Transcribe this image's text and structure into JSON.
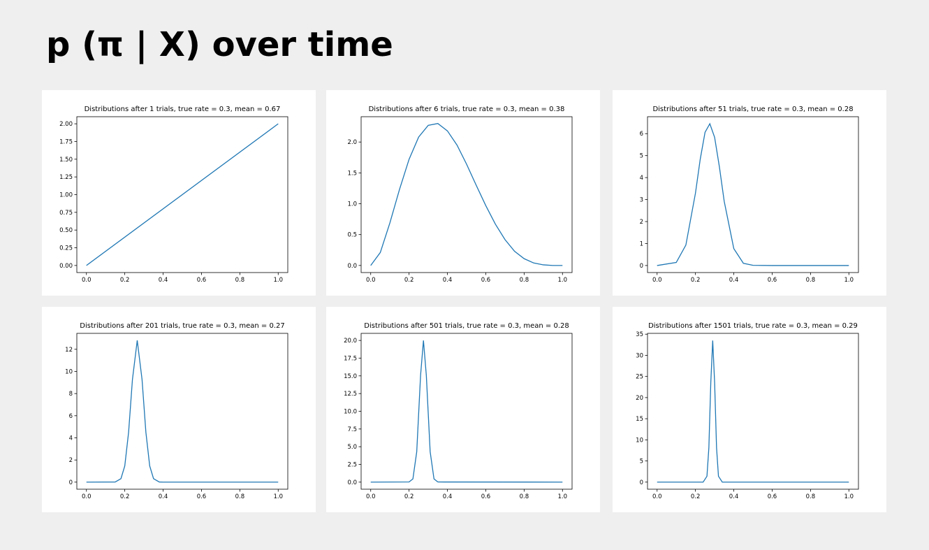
{
  "title": "p (π | X) over time",
  "chart_data": [
    {
      "type": "line",
      "title": "Distributions after 1 trials, true rate = 0.3, mean = 0.67",
      "color": "#1f77b4",
      "x": [
        0,
        1
      ],
      "values": [
        0,
        2
      ],
      "xlim": [
        -0.05,
        1.05
      ],
      "xticks": [
        {
          "value": 0,
          "label": "0.0"
        },
        {
          "value": 0.2,
          "label": "0.2"
        },
        {
          "value": 0.4,
          "label": "0.4"
        },
        {
          "value": 0.6,
          "label": "0.6"
        },
        {
          "value": 0.8,
          "label": "0.8"
        },
        {
          "value": 1,
          "label": "1.0"
        }
      ],
      "ylim": [
        -0.1,
        2.1
      ],
      "yticks": [
        {
          "value": 0,
          "label": "0.00"
        },
        {
          "value": 0.25,
          "label": "0.25"
        },
        {
          "value": 0.5,
          "label": "0.50"
        },
        {
          "value": 0.75,
          "label": "0.75"
        },
        {
          "value": 1,
          "label": "1.00"
        },
        {
          "value": 1.25,
          "label": "1.25"
        },
        {
          "value": 1.5,
          "label": "1.50"
        },
        {
          "value": 1.75,
          "label": "1.75"
        },
        {
          "value": 2,
          "label": "2.00"
        }
      ]
    },
    {
      "type": "line",
      "title": "Distributions after 6 trials, true rate = 0.3, mean = 0.38",
      "color": "#1f77b4",
      "x": [
        0,
        0.05,
        0.1,
        0.15,
        0.2,
        0.25,
        0.3,
        0.35,
        0.4,
        0.45,
        0.5,
        0.55,
        0.6,
        0.65,
        0.7,
        0.75,
        0.8,
        0.85,
        0.9,
        0.95,
        1
      ],
      "values": [
        0,
        0.21,
        0.69,
        1.23,
        1.72,
        2.08,
        2.27,
        2.3,
        2.18,
        1.95,
        1.64,
        1.3,
        0.97,
        0.67,
        0.42,
        0.23,
        0.11,
        0.04,
        0.01,
        0,
        0
      ],
      "xlim": [
        -0.05,
        1.05
      ],
      "xticks": [
        {
          "value": 0,
          "label": "0.0"
        },
        {
          "value": 0.2,
          "label": "0.2"
        },
        {
          "value": 0.4,
          "label": "0.4"
        },
        {
          "value": 0.6,
          "label": "0.6"
        },
        {
          "value": 0.8,
          "label": "0.8"
        },
        {
          "value": 1,
          "label": "1.0"
        }
      ],
      "ylim": [
        -0.115,
        2.41
      ],
      "yticks": [
        {
          "value": 0,
          "label": "0.0"
        },
        {
          "value": 0.5,
          "label": "0.5"
        },
        {
          "value": 1,
          "label": "1.0"
        },
        {
          "value": 1.5,
          "label": "1.5"
        },
        {
          "value": 2,
          "label": "2.0"
        }
      ]
    },
    {
      "type": "line",
      "title": "Distributions after 51 trials, true rate = 0.3, mean = 0.28",
      "color": "#1f77b4",
      "x": [
        0,
        0.1,
        0.15,
        0.2,
        0.225,
        0.25,
        0.275,
        0.3,
        0.325,
        0.35,
        0.4,
        0.45,
        0.5,
        0.6,
        1
      ],
      "values": [
        0,
        0.14,
        0.93,
        3.29,
        4.84,
        6.06,
        6.45,
        5.83,
        4.48,
        2.92,
        0.77,
        0.1,
        0.01,
        0,
        0
      ],
      "xlim": [
        -0.05,
        1.05
      ],
      "xticks": [
        {
          "value": 0,
          "label": "0.0"
        },
        {
          "value": 0.2,
          "label": "0.2"
        },
        {
          "value": 0.4,
          "label": "0.4"
        },
        {
          "value": 0.6,
          "label": "0.6"
        },
        {
          "value": 0.8,
          "label": "0.8"
        },
        {
          "value": 1,
          "label": "1.0"
        }
      ],
      "ylim": [
        -0.32,
        6.77
      ],
      "yticks": [
        0,
        1,
        2,
        3,
        4,
        5,
        6
      ]
    },
    {
      "type": "line",
      "title": "Distributions after 201 trials, true rate = 0.3, mean = 0.27",
      "color": "#1f77b4",
      "x": [
        0,
        0.15,
        0.18,
        0.2,
        0.22,
        0.24,
        0.265,
        0.29,
        0.31,
        0.33,
        0.35,
        0.38,
        0.4,
        1
      ],
      "values": [
        0,
        0.01,
        0.31,
        1.46,
        4.52,
        9.28,
        12.8,
        9.28,
        4.52,
        1.46,
        0.31,
        0.01,
        0,
        0
      ],
      "xlim": [
        -0.05,
        1.05
      ],
      "xticks": [
        {
          "value": 0,
          "label": "0.0"
        },
        {
          "value": 0.2,
          "label": "0.2"
        },
        {
          "value": 0.4,
          "label": "0.4"
        },
        {
          "value": 0.6,
          "label": "0.6"
        },
        {
          "value": 0.8,
          "label": "0.8"
        },
        {
          "value": 1,
          "label": "1.0"
        }
      ],
      "ylim": [
        -0.64,
        13.44
      ],
      "yticks": [
        0,
        2,
        4,
        6,
        8,
        10,
        12
      ]
    },
    {
      "type": "line",
      "title": "Distributions after 501 trials, true rate = 0.3, mean = 0.28",
      "color": "#1f77b4",
      "x": [
        0,
        0.2,
        0.22,
        0.24,
        0.26,
        0.275,
        0.29,
        0.31,
        0.33,
        0.35,
        1
      ],
      "values": [
        0,
        0.02,
        0.45,
        4.29,
        15.07,
        20,
        15.07,
        4.29,
        0.45,
        0.02,
        0
      ],
      "xlim": [
        -0.05,
        1.05
      ],
      "xticks": [
        {
          "value": 0,
          "label": "0.0"
        },
        {
          "value": 0.2,
          "label": "0.2"
        },
        {
          "value": 0.4,
          "label": "0.4"
        },
        {
          "value": 0.6,
          "label": "0.6"
        },
        {
          "value": 0.8,
          "label": "0.8"
        },
        {
          "value": 1,
          "label": "1.0"
        }
      ],
      "ylim": [
        -1,
        21
      ],
      "yticks": [
        {
          "value": 0,
          "label": "0.0"
        },
        {
          "value": 2.5,
          "label": "2.5"
        },
        {
          "value": 5,
          "label": "5.0"
        },
        {
          "value": 7.5,
          "label": "7.5"
        },
        {
          "value": 10,
          "label": "10.0"
        },
        {
          "value": 12.5,
          "label": "12.5"
        },
        {
          "value": 15,
          "label": "15.0"
        },
        {
          "value": 17.5,
          "label": "17.5"
        },
        {
          "value": 20,
          "label": "20.0"
        }
      ]
    },
    {
      "type": "line",
      "title": "Distributions after 1501 trials, true rate = 0.3, mean = 0.29",
      "color": "#1f77b4",
      "x": [
        0,
        0.24,
        0.26,
        0.27,
        0.28,
        0.29,
        0.3,
        0.31,
        0.32,
        0.34,
        1
      ],
      "values": [
        0,
        0,
        1.39,
        8.15,
        23.53,
        33.5,
        23.53,
        8.15,
        1.39,
        0,
        0
      ],
      "xlim": [
        -0.05,
        1.05
      ],
      "xticks": [
        {
          "value": 0,
          "label": "0.0"
        },
        {
          "value": 0.2,
          "label": "0.2"
        },
        {
          "value": 0.4,
          "label": "0.4"
        },
        {
          "value": 0.6,
          "label": "0.6"
        },
        {
          "value": 0.8,
          "label": "0.8"
        },
        {
          "value": 1,
          "label": "1.0"
        }
      ],
      "ylim": [
        -1.68,
        35.2
      ],
      "yticks": [
        0,
        5,
        10,
        15,
        20,
        25,
        30,
        35
      ]
    }
  ]
}
